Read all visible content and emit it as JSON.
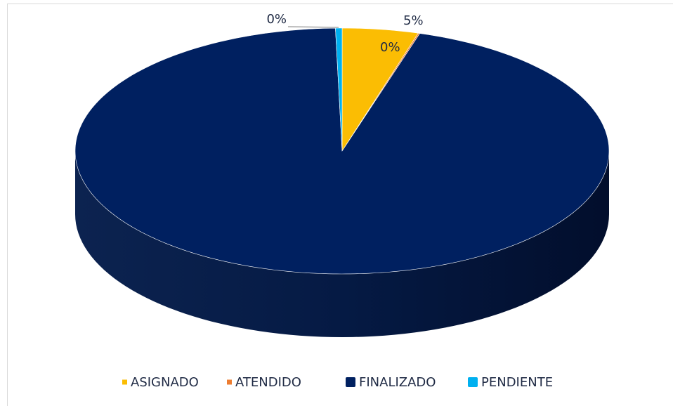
{
  "chart_data": {
    "type": "pie3d",
    "categories": [
      "ASIGNADO",
      "ATENDIDO",
      "FINALIZADO",
      "PENDIENTE"
    ],
    "values": [
      4.6,
      0.1,
      94.9,
      0.4
    ],
    "value_labels": [
      "5%",
      "0%",
      null,
      "0%"
    ],
    "colors": [
      "#fbbd03",
      "#ed7d31",
      "#002060",
      "#00b0f0"
    ],
    "legend": "bottom"
  }
}
